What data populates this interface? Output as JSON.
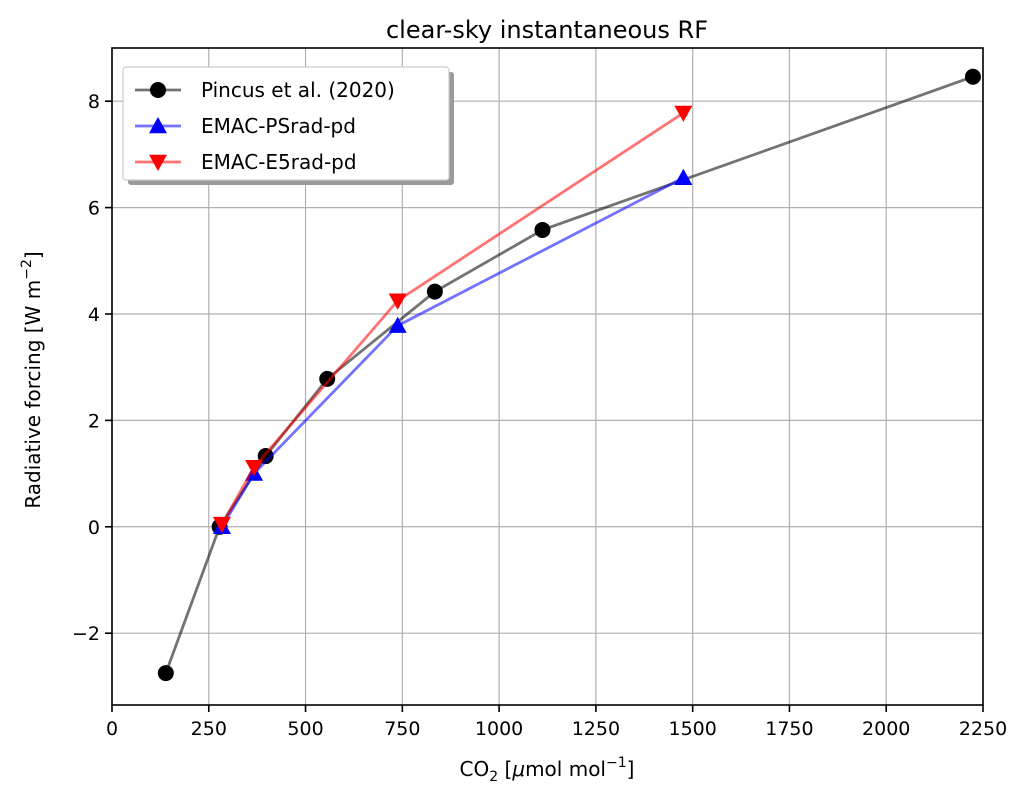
{
  "chart_data": {
    "type": "line",
    "title": "clear-sky instantaneous RF",
    "xlabel_parts": [
      "CO",
      "2",
      " [",
      "μ",
      "mol mol",
      "−1",
      "]"
    ],
    "ylabel_parts": [
      "Radiative forcing [W m",
      "−2",
      "]"
    ],
    "xlim": [
      0,
      2250
    ],
    "ylim": [
      -3.35,
      9.0
    ],
    "xticks": [
      0,
      250,
      500,
      750,
      1000,
      1250,
      1500,
      1750,
      2000,
      2250
    ],
    "xtick_labels": [
      "0",
      "250",
      "500",
      "750",
      "1000",
      "1250",
      "1500",
      "1750",
      "2000",
      "2250"
    ],
    "yticks": [
      -2,
      0,
      2,
      4,
      6,
      8
    ],
    "ytick_labels": [
      "−2",
      "0",
      "2",
      "4",
      "6",
      "8"
    ],
    "grid": true,
    "legend_position": "top-left",
    "series": [
      {
        "name": "Pincus et al. (2020)",
        "color": "#000000",
        "marker": "circle",
        "line_alpha": 0.55,
        "x": [
          139,
          278,
          397,
          556,
          834,
          1112,
          2224
        ],
        "y": [
          -2.75,
          0.0,
          1.33,
          2.78,
          4.42,
          5.58,
          8.46
        ]
      },
      {
        "name": "EMAC-PSrad-pd",
        "color": "#0000ff",
        "marker": "triangle-up",
        "line_alpha": 0.55,
        "x": [
          284,
          367,
          738,
          1476
        ],
        "y": [
          0.0,
          1.0,
          3.78,
          6.56
        ]
      },
      {
        "name": "EMAC-E5rad-pd",
        "color": "#ff0000",
        "marker": "triangle-down",
        "line_alpha": 0.55,
        "x": [
          284,
          367,
          738,
          1476
        ],
        "y": [
          0.05,
          1.12,
          4.25,
          7.78
        ]
      }
    ]
  }
}
